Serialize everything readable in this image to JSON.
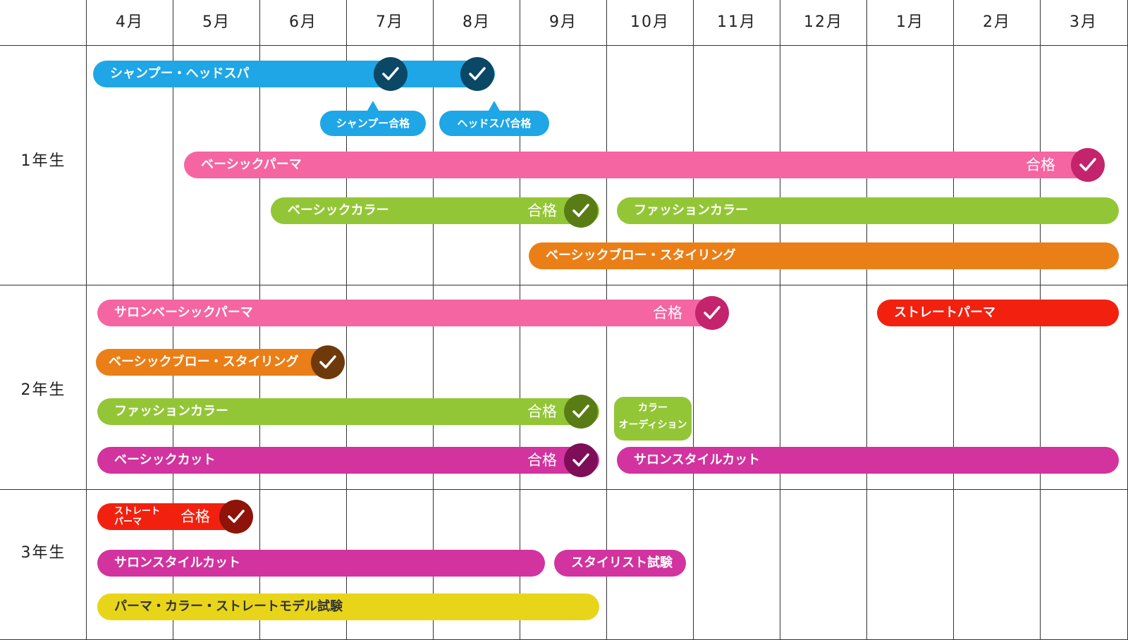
{
  "months": [
    "4月",
    "5月",
    "6月",
    "7月",
    "8月",
    "9月",
    "10月",
    "11月",
    "12月",
    "1月",
    "2月",
    "3月"
  ],
  "years": [
    {
      "label": "1年生"
    },
    {
      "label": "2年生"
    },
    {
      "label": "3年生"
    }
  ],
  "pass_label": "合格",
  "colors": {
    "blue": "#1ea6e6",
    "blue_dark": "#0a4865",
    "pink": "#f565a2",
    "pink_dark": "#c4246b",
    "green": "#93c637",
    "green_dark": "#5a7c15",
    "orange": "#ea7f17",
    "orange_dark": "#6f3a0b",
    "red": "#f2210f",
    "red_dark": "#8e1309",
    "magenta": "#d2339e",
    "magenta_dark": "#7d0e57",
    "yellow": "#e8d51a"
  },
  "bars": [
    {
      "label": "シャンプー・ヘッドスパ",
      "color": "blue"
    },
    {
      "label": "ベーシックパーマ",
      "color": "pink",
      "pass": true
    },
    {
      "label": "ベーシックカラー",
      "color": "green",
      "pass": true
    },
    {
      "label": "ファッションカラー",
      "color": "green"
    },
    {
      "label": "ベーシックブロー・スタイリング",
      "color": "orange"
    },
    {
      "label": "サロンベーシックパーマ",
      "color": "pink",
      "pass": true
    },
    {
      "label": "ストレートパーマ",
      "color": "red"
    },
    {
      "label": "ベーシックブロー・スタイリング",
      "color": "orange"
    },
    {
      "label": "ファッションカラー",
      "color": "green",
      "pass": true
    },
    {
      "label": "カラーオーディション",
      "line1": "カラー",
      "line2": "オーディション",
      "color": "green"
    },
    {
      "label": "ベーシックカット",
      "color": "magenta",
      "pass": true
    },
    {
      "label": "サロンスタイルカット",
      "color": "magenta"
    },
    {
      "label": "ストレートパーマ",
      "line1": "ストレート",
      "line2": "パーマ",
      "color": "red",
      "pass": true
    },
    {
      "label": "サロンスタイルカット",
      "color": "magenta"
    },
    {
      "label": "スタイリスト試験",
      "color": "magenta"
    },
    {
      "label": "パーマ・カラー・ストレートモデル試験",
      "color": "yellow"
    }
  ],
  "bubbles": [
    {
      "label": "シャンプー合格"
    },
    {
      "label": "ヘッドスパ合格"
    }
  ]
}
